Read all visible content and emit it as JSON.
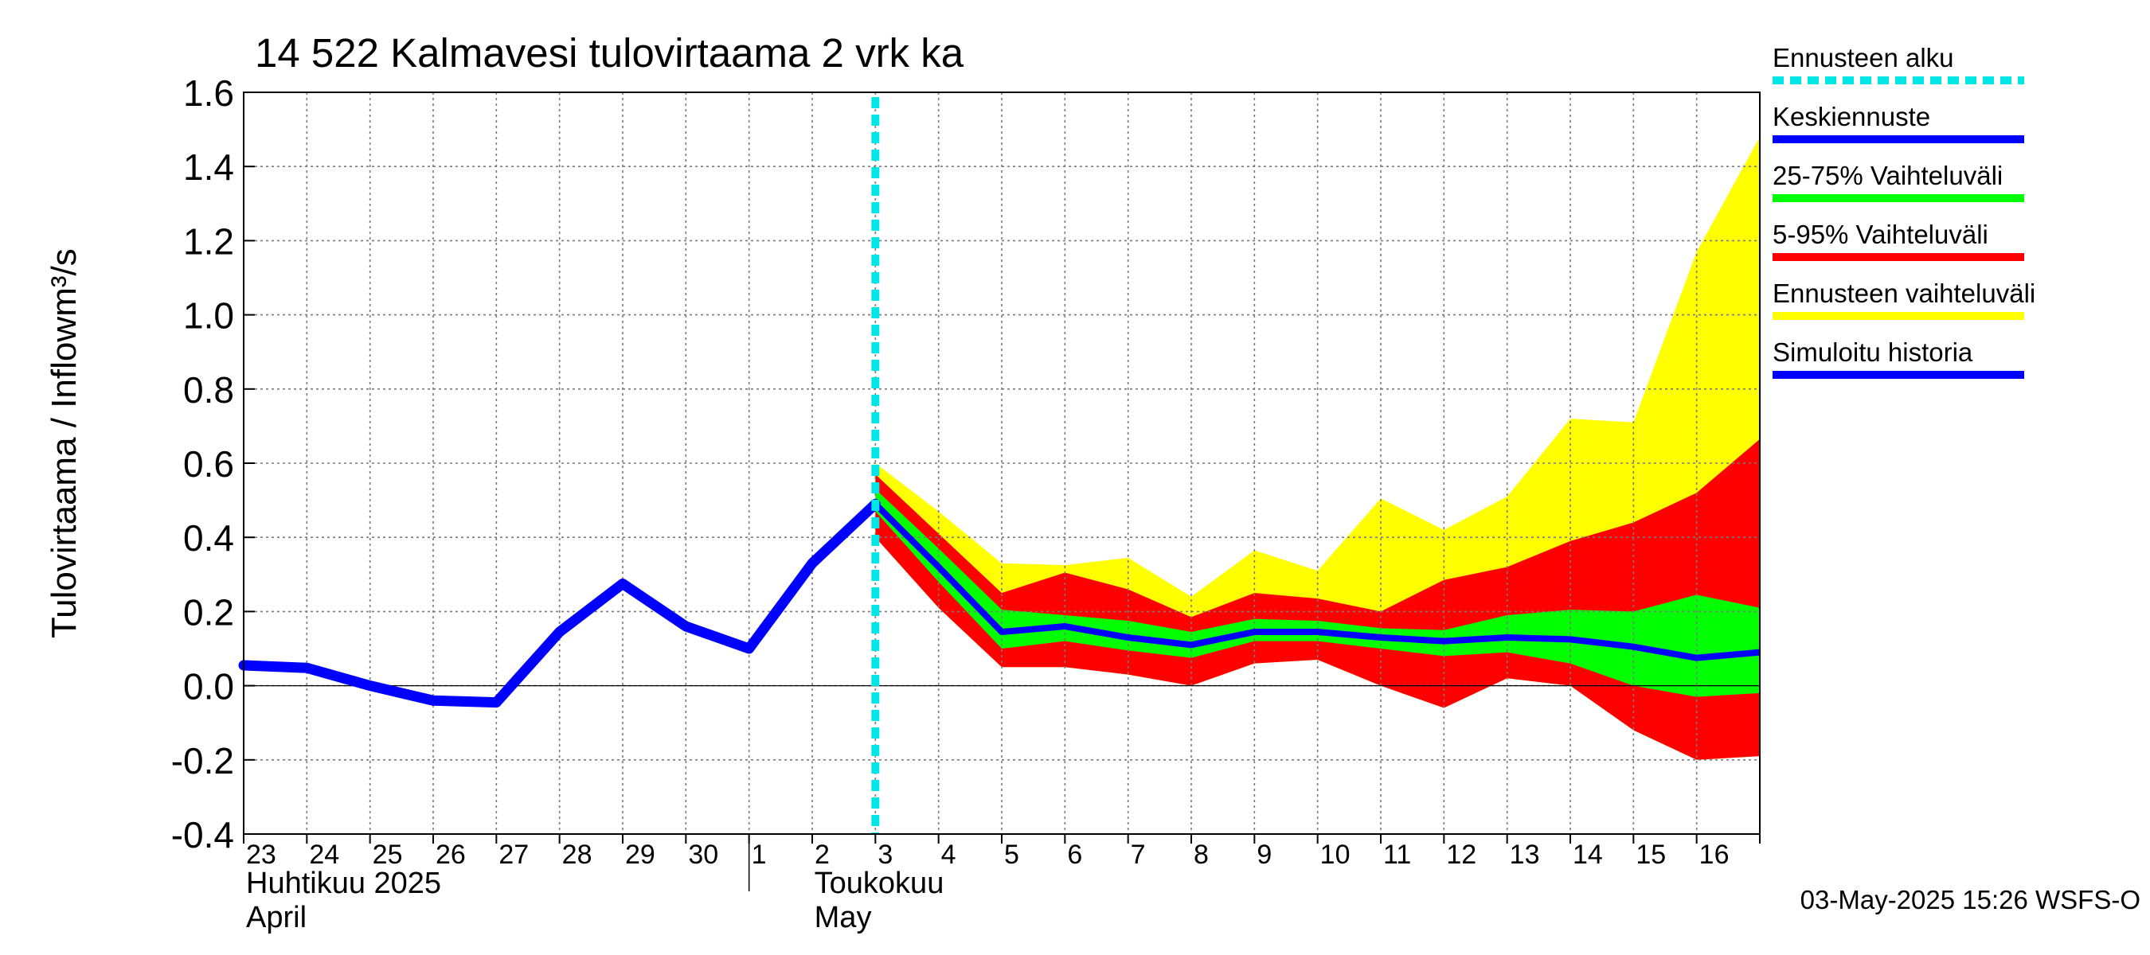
{
  "chart_data": {
    "type": "area",
    "title": "14 522 Kalmavesi tulovirtaama 2 vrk ka",
    "ylabel": "Tulovirtaama / Inflow",
    "yunit": "m³/s",
    "ylim": [
      -0.4,
      1.6
    ],
    "yticks": [
      "1.6",
      "1.4",
      "1.2",
      "1.0",
      "0.8",
      "0.6",
      "0.4",
      "0.2",
      "0.0",
      "-0.2",
      "-0.4"
    ],
    "xlim": [
      "2025-04-23",
      "2025-05-17"
    ],
    "xtick_labels": [
      "23",
      "24",
      "25",
      "26",
      "27",
      "28",
      "29",
      "30",
      "1",
      "2",
      "3",
      "4",
      "5",
      "6",
      "7",
      "8",
      "9",
      "10",
      "11",
      "12",
      "13",
      "14",
      "15",
      "16"
    ],
    "month_labels": [
      {
        "fi": "Huhtikuu  2025",
        "en": "April"
      },
      {
        "fi": "Toukokuu",
        "en": "May"
      }
    ],
    "grid": true,
    "forecast_start": "2025-05-03",
    "legend_position": "right",
    "legend": [
      {
        "label": "Ennusteen alku",
        "color": "#00e5e5",
        "style": "dotted"
      },
      {
        "label": "Keskiennuste",
        "color": "#0000ff",
        "style": "solid"
      },
      {
        "label": "25-75% Vaihteluväli",
        "color": "#00ff00",
        "style": "solid"
      },
      {
        "label": "5-95% Vaihteluväli",
        "color": "#ff0000",
        "style": "solid"
      },
      {
        "label": "Ennusteen vaihteluväli",
        "color": "#ffff00",
        "style": "solid"
      },
      {
        "label": "Simuloitu historia",
        "color": "#0000ff",
        "style": "solid"
      }
    ],
    "history": {
      "name": "Simuloitu historia",
      "color": "#0000ff",
      "x": [
        "2025-04-23",
        "2025-04-24",
        "2025-04-25",
        "2025-04-26",
        "2025-04-27",
        "2025-04-28",
        "2025-04-29",
        "2025-04-30",
        "2025-05-01",
        "2025-05-02",
        "2025-05-03"
      ],
      "y": [
        0.055,
        0.048,
        0.0,
        -0.04,
        -0.045,
        0.145,
        0.275,
        0.16,
        0.1,
        0.33,
        0.49
      ]
    },
    "forecast_x": [
      "2025-05-03",
      "2025-05-04",
      "2025-05-05",
      "2025-05-06",
      "2025-05-07",
      "2025-05-08",
      "2025-05-09",
      "2025-05-10",
      "2025-05-11",
      "2025-05-12",
      "2025-05-13",
      "2025-05-14",
      "2025-05-15",
      "2025-05-16",
      "2025-05-17"
    ],
    "bands": [
      {
        "name": "Ennusteen vaihteluväli",
        "color": "#ffff00",
        "upper": [
          0.6,
          0.47,
          0.33,
          0.325,
          0.345,
          0.24,
          0.365,
          0.31,
          0.505,
          0.42,
          0.51,
          0.72,
          0.71,
          1.17,
          1.48
        ],
        "lower": [
          0.4,
          0.21,
          0.05,
          0.05,
          0.03,
          0.0,
          0.06,
          0.07,
          0.0,
          -0.06,
          0.02,
          0.0,
          -0.12,
          -0.2,
          -0.19
        ]
      },
      {
        "name": "5-95% Vaihteluväli",
        "color": "#ff0000",
        "upper": [
          0.57,
          0.41,
          0.25,
          0.305,
          0.26,
          0.185,
          0.25,
          0.235,
          0.2,
          0.285,
          0.32,
          0.39,
          0.44,
          0.52,
          0.665
        ]
      },
      {
        "name": "25-75% Vaihteluväli",
        "color": "#00ff00",
        "upper": [
          0.53,
          0.37,
          0.205,
          0.19,
          0.175,
          0.145,
          0.18,
          0.175,
          0.155,
          0.15,
          0.19,
          0.205,
          0.2,
          0.245,
          0.21
        ],
        "lower": [
          0.47,
          0.28,
          0.1,
          0.12,
          0.095,
          0.075,
          0.12,
          0.12,
          0.1,
          0.08,
          0.09,
          0.06,
          0.0,
          -0.03,
          -0.02
        ]
      }
    ],
    "forecast_mean": {
      "name": "Keskiennuste",
      "color": "#0000ff",
      "y": [
        0.49,
        0.32,
        0.145,
        0.16,
        0.13,
        0.11,
        0.145,
        0.145,
        0.13,
        0.12,
        0.13,
        0.125,
        0.105,
        0.075,
        0.09
      ]
    },
    "footer": "03-May-2025 15:26 WSFS-O"
  }
}
